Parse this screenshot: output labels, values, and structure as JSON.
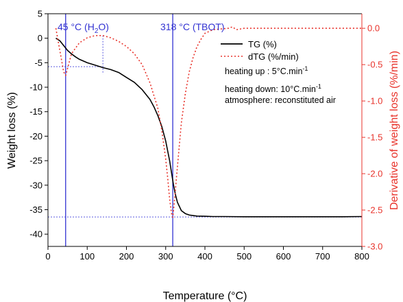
{
  "chart_data": {
    "type": "line",
    "xlabel": "Temperature (°C)",
    "ylabel_left": "Weight loss (%)",
    "ylabel_right": "Derivative of weight loss (%/min)",
    "xlim": [
      0,
      800
    ],
    "ylim_left": [
      -42.5,
      5
    ],
    "ylim_right": [
      -3.0,
      0.2
    ],
    "xticks": [
      0,
      100,
      200,
      300,
      400,
      500,
      600,
      700,
      800
    ],
    "yticks_left": [
      5,
      0,
      -5,
      -10,
      -15,
      -20,
      -25,
      -30,
      -35,
      -40
    ],
    "yticks_right": [
      "0.0",
      "-0.5",
      "-1.0",
      "-1.5",
      "-2.0",
      "-2.5",
      "-3.0"
    ],
    "grid": false,
    "legend_position": "top-right",
    "left_axis_color": "#000000",
    "right_axis_color": "#e8322a",
    "series": [
      {
        "name": "TG (%)",
        "axis": "left",
        "color": "#000000",
        "style": "solid",
        "x": [
          20,
          30,
          40,
          50,
          60,
          70,
          80,
          100,
          120,
          140,
          160,
          180,
          200,
          220,
          240,
          260,
          270,
          280,
          290,
          300,
          310,
          315,
          320,
          325,
          330,
          340,
          350,
          360,
          380,
          400,
          420,
          450,
          500,
          550,
          600,
          650,
          700,
          750,
          800
        ],
        "y": [
          0,
          -0.5,
          -1.5,
          -2.5,
          -3.2,
          -3.8,
          -4.3,
          -5.0,
          -5.5,
          -6.0,
          -6.4,
          -7.0,
          -8.0,
          -9.0,
          -10.5,
          -12.5,
          -14.0,
          -15.8,
          -18.0,
          -21.0,
          -25.0,
          -27.5,
          -30.0,
          -32.0,
          -33.5,
          -35.2,
          -35.8,
          -36.1,
          -36.3,
          -36.35,
          -36.4,
          -36.4,
          -36.45,
          -36.45,
          -36.45,
          -36.45,
          -36.45,
          -36.45,
          -36.4
        ]
      },
      {
        "name": "dTG (%/min)",
        "axis": "right",
        "color": "#e8322a",
        "style": "dotted",
        "x": [
          20,
          30,
          40,
          45,
          50,
          60,
          80,
          100,
          120,
          140,
          160,
          180,
          200,
          220,
          240,
          260,
          280,
          290,
          300,
          305,
          310,
          315,
          318,
          322,
          330,
          340,
          350,
          360,
          370,
          380,
          390,
          400,
          420,
          440,
          460,
          470,
          480,
          500,
          550,
          600,
          700,
          800
        ],
        "y": [
          0.0,
          -0.3,
          -0.6,
          -0.65,
          -0.55,
          -0.35,
          -0.2,
          -0.13,
          -0.1,
          -0.1,
          -0.13,
          -0.18,
          -0.25,
          -0.35,
          -0.5,
          -0.75,
          -1.1,
          -1.4,
          -1.8,
          -2.05,
          -2.35,
          -2.55,
          -2.6,
          -2.4,
          -1.9,
          -1.3,
          -0.9,
          -0.6,
          -0.4,
          -0.25,
          -0.15,
          -0.07,
          -0.02,
          -0.01,
          0.0,
          0.02,
          -0.02,
          0.0,
          0.0,
          0.0,
          0.0,
          0.0
        ]
      }
    ],
    "vlines": [
      {
        "x": 45,
        "label": "45 °C (H",
        "label_sub": "2",
        "label_end": "O)",
        "color": "#3232d2"
      },
      {
        "x": 318,
        "label": "318 °C (TBOT)",
        "color": "#3232d2"
      }
    ],
    "guides": [
      {
        "from": [
          0,
          -5.8
        ],
        "to": [
          140,
          -5.8
        ],
        "axis": "left"
      },
      {
        "from": [
          140,
          -0.1
        ],
        "to": [
          140,
          -0.63
        ],
        "axis": "right"
      },
      {
        "from": [
          0,
          -36.5
        ],
        "to": [
          800,
          -36.5
        ],
        "axis": "left"
      }
    ],
    "annotations": [
      {
        "text": "heating up : 5°C.min",
        "sup": "-1"
      },
      {
        "text": "heating down: 10°C.min",
        "sup": "-1"
      },
      {
        "text": "atmosphere: reconstituted air",
        "sup": ""
      }
    ]
  }
}
